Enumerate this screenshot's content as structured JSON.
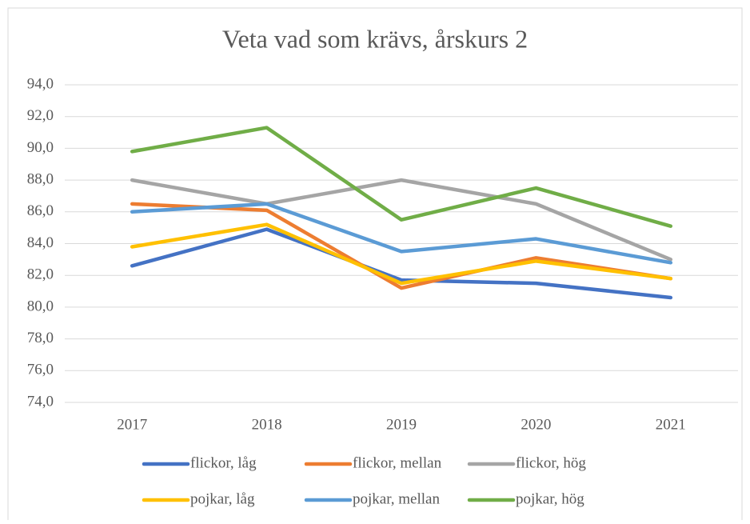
{
  "chart_data": {
    "type": "line",
    "title": "Veta vad som krävs, årskurs 2",
    "categories": [
      "2017",
      "2018",
      "2019",
      "2020",
      "2021"
    ],
    "series": [
      {
        "name": "flickor, låg",
        "color": "#4472c4",
        "values": [
          82.6,
          84.9,
          81.7,
          81.5,
          80.6
        ]
      },
      {
        "name": "flickor, mellan",
        "color": "#ed7d31",
        "values": [
          86.5,
          86.1,
          81.2,
          83.1,
          81.8
        ]
      },
      {
        "name": "flickor, hög",
        "color": "#a5a5a5",
        "values": [
          88.0,
          86.5,
          88.0,
          86.5,
          83.0
        ]
      },
      {
        "name": "pojkar, låg",
        "color": "#ffc000",
        "values": [
          83.8,
          85.2,
          81.5,
          82.9,
          81.8
        ]
      },
      {
        "name": "pojkar, mellan",
        "color": "#5b9bd5",
        "values": [
          86.0,
          86.5,
          83.5,
          84.3,
          82.8
        ]
      },
      {
        "name": "pojkar, hög",
        "color": "#70ad47",
        "values": [
          89.8,
          91.3,
          85.5,
          87.5,
          85.1
        ]
      }
    ],
    "ylim": [
      74,
      94
    ],
    "yticks": [
      {
        "value": 74,
        "label": "74,0"
      },
      {
        "value": 76,
        "label": "76,0"
      },
      {
        "value": 78,
        "label": "78,0"
      },
      {
        "value": 80,
        "label": "80,0"
      },
      {
        "value": 82,
        "label": "82,0"
      },
      {
        "value": 84,
        "label": "84,0"
      },
      {
        "value": 86,
        "label": "86,0"
      },
      {
        "value": 88,
        "label": "88,0"
      },
      {
        "value": 90,
        "label": "90,0"
      },
      {
        "value": 92,
        "label": "92,0"
      },
      {
        "value": 94,
        "label": "94,0"
      }
    ],
    "grid": true,
    "legend": "bottom"
  }
}
